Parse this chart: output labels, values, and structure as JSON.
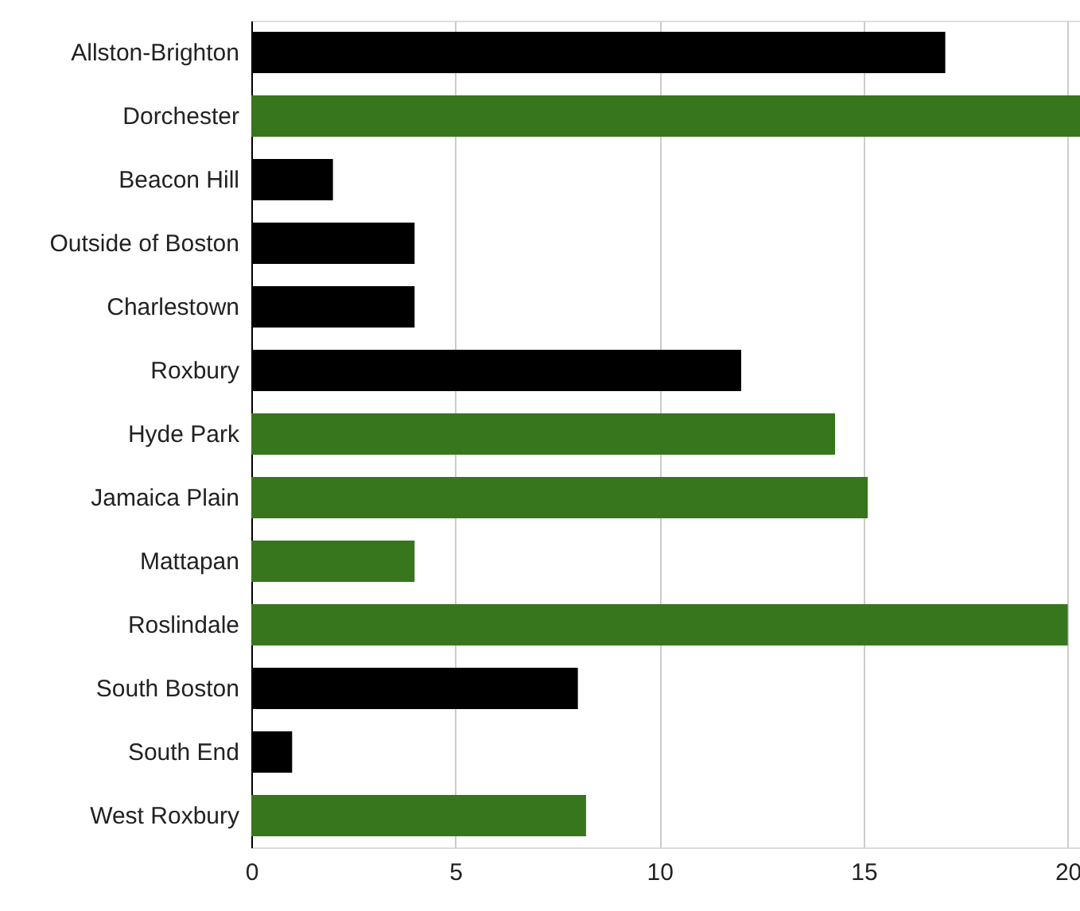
{
  "chart_data": {
    "type": "bar",
    "orientation": "horizontal",
    "categories": [
      "Allston-Brighton",
      "Dorchester",
      "Beacon Hill",
      "Outside of Boston",
      "Charlestown",
      "Roxbury",
      "Hyde Park",
      "Jamaica Plain",
      "Mattapan",
      "Roslindale",
      "South Boston",
      "South End",
      "West Roxbury"
    ],
    "values": [
      17,
      20.3,
      2,
      4,
      4,
      12,
      14.3,
      15.1,
      4,
      20,
      8,
      1,
      8.2
    ],
    "colors": [
      "#000000",
      "#38761d",
      "#000000",
      "#000000",
      "#000000",
      "#000000",
      "#38761d",
      "#38761d",
      "#38761d",
      "#38761d",
      "#000000",
      "#000000",
      "#38761d"
    ],
    "xlim": [
      0,
      20.3
    ],
    "xticks": [
      0,
      5,
      10,
      15,
      20
    ],
    "grid": "x"
  }
}
